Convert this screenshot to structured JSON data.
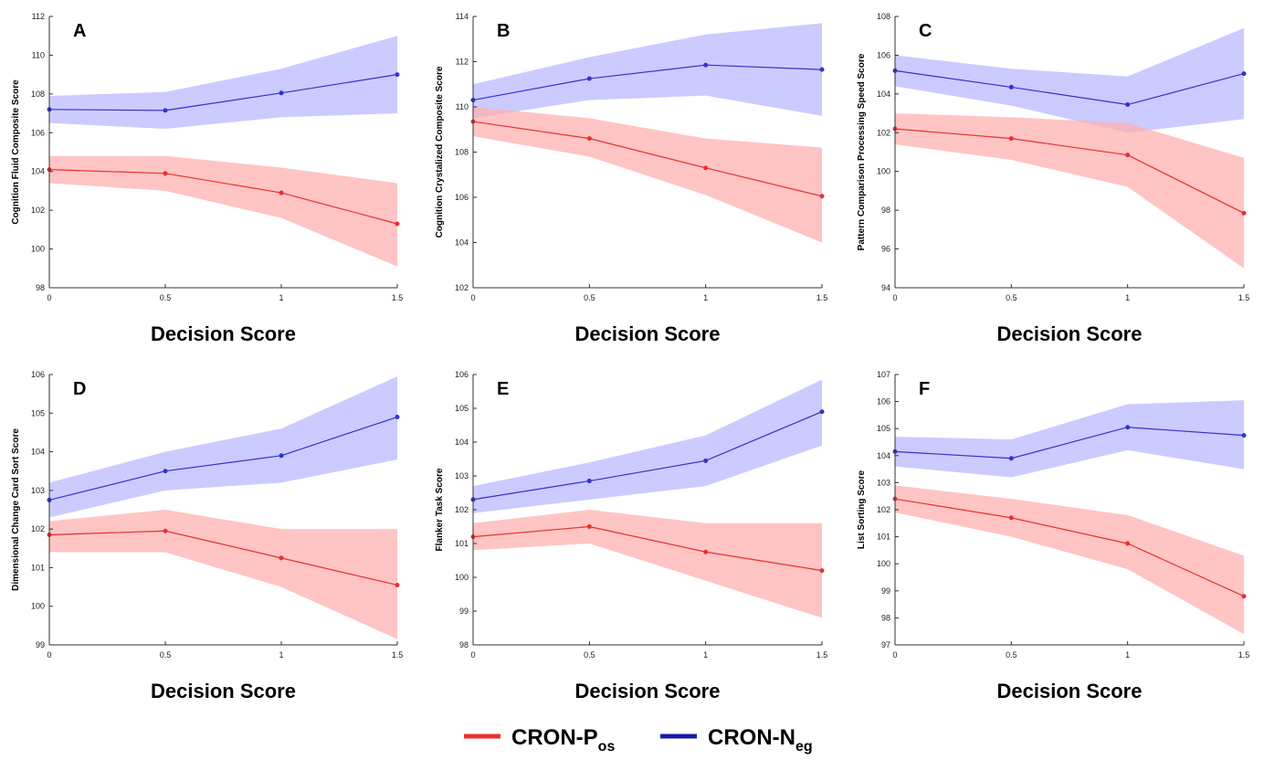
{
  "chart_data": [
    {
      "type": "line",
      "title": "A",
      "y_label": "Cognition Fluid Composite Score",
      "x_label": "Decision Score",
      "x": [
        0,
        0.5,
        1,
        1.5
      ],
      "xlim": [
        0,
        1.5
      ],
      "xticks": [
        0,
        0.5,
        1,
        1.5
      ],
      "ylim": [
        98,
        112
      ],
      "yticks": [
        98,
        100,
        102,
        104,
        106,
        108,
        110,
        112
      ],
      "series": [
        {
          "color": "#3333cc",
          "band_color": "#b9b9ff",
          "values": [
            107.2,
            107.15,
            108.05,
            109.0
          ],
          "lower": [
            106.5,
            106.2,
            106.8,
            107.0
          ],
          "upper": [
            107.9,
            108.1,
            109.3,
            111.0
          ]
        },
        {
          "color": "#e83030",
          "band_color": "#ffb0b0",
          "values": [
            104.1,
            103.9,
            102.9,
            101.3
          ],
          "lower": [
            103.4,
            103.0,
            101.6,
            99.1
          ],
          "upper": [
            104.8,
            104.8,
            104.2,
            103.4
          ]
        }
      ]
    },
    {
      "type": "line",
      "title": "B",
      "y_label": "Cognition Crystalized Composite Score",
      "x_label": "Decision Score",
      "x": [
        0,
        0.5,
        1,
        1.5
      ],
      "xlim": [
        0,
        1.5
      ],
      "xticks": [
        0,
        0.5,
        1,
        1.5
      ],
      "ylim": [
        102,
        114
      ],
      "yticks": [
        102,
        104,
        106,
        108,
        110,
        112,
        114
      ],
      "series": [
        {
          "color": "#3333cc",
          "band_color": "#b9b9ff",
          "values": [
            110.3,
            111.25,
            111.85,
            111.65
          ],
          "lower": [
            109.5,
            110.3,
            110.5,
            109.6
          ],
          "upper": [
            111.0,
            112.2,
            113.2,
            113.7
          ]
        },
        {
          "color": "#e83030",
          "band_color": "#ffb0b0",
          "values": [
            109.35,
            108.6,
            107.3,
            106.05
          ],
          "lower": [
            108.7,
            107.8,
            106.1,
            104.0
          ],
          "upper": [
            110.0,
            109.5,
            108.6,
            108.2
          ]
        }
      ]
    },
    {
      "type": "line",
      "title": "C",
      "y_label": "Pattern Comparison Processing Speed Score",
      "x_label": "Decision Score",
      "x": [
        0,
        0.5,
        1,
        1.5
      ],
      "xlim": [
        0,
        1.5
      ],
      "xticks": [
        0,
        0.5,
        1,
        1.5
      ],
      "ylim": [
        94,
        108
      ],
      "yticks": [
        94,
        96,
        98,
        100,
        102,
        104,
        106,
        108
      ],
      "series": [
        {
          "color": "#3333cc",
          "band_color": "#b9b9ff",
          "values": [
            105.2,
            104.35,
            103.45,
            105.05
          ],
          "lower": [
            104.4,
            103.4,
            102.0,
            102.7
          ],
          "upper": [
            106.0,
            105.3,
            104.9,
            107.4
          ]
        },
        {
          "color": "#e83030",
          "band_color": "#ffb0b0",
          "values": [
            102.2,
            101.7,
            100.85,
            97.85
          ],
          "lower": [
            101.4,
            100.6,
            99.2,
            95.0
          ],
          "upper": [
            103.0,
            102.8,
            102.5,
            100.7
          ]
        }
      ]
    },
    {
      "type": "line",
      "title": "D",
      "y_label": "Dimensional Change Card Sort Score",
      "x_label": "Decision Score",
      "x": [
        0,
        0.5,
        1,
        1.5
      ],
      "xlim": [
        0,
        1.5
      ],
      "xticks": [
        0,
        0.5,
        1,
        1.5
      ],
      "ylim": [
        99,
        106
      ],
      "yticks": [
        99,
        100,
        101,
        102,
        103,
        104,
        105,
        106
      ],
      "series": [
        {
          "color": "#3333cc",
          "band_color": "#b9b9ff",
          "values": [
            102.75,
            103.5,
            103.9,
            104.9
          ],
          "lower": [
            102.3,
            103.0,
            103.2,
            103.8
          ],
          "upper": [
            103.2,
            104.0,
            104.6,
            105.95
          ]
        },
        {
          "color": "#e83030",
          "band_color": "#ffb0b0",
          "values": [
            101.85,
            101.95,
            101.25,
            100.55
          ],
          "lower": [
            101.4,
            101.4,
            100.5,
            99.15
          ],
          "upper": [
            102.2,
            102.5,
            102.0,
            102.0
          ]
        }
      ]
    },
    {
      "type": "line",
      "title": "E",
      "y_label": "Flanker Task Score",
      "x_label": "Decision Score",
      "x": [
        0,
        0.5,
        1,
        1.5
      ],
      "xlim": [
        0,
        1.5
      ],
      "xticks": [
        0,
        0.5,
        1,
        1.5
      ],
      "ylim": [
        98,
        106
      ],
      "yticks": [
        98,
        99,
        100,
        101,
        102,
        103,
        104,
        105,
        106
      ],
      "series": [
        {
          "color": "#3333cc",
          "band_color": "#b9b9ff",
          "values": [
            102.3,
            102.85,
            103.45,
            104.9
          ],
          "lower": [
            101.9,
            102.3,
            102.7,
            103.9
          ],
          "upper": [
            102.7,
            103.4,
            104.2,
            105.85
          ]
        },
        {
          "color": "#e83030",
          "band_color": "#ffb0b0",
          "values": [
            101.2,
            101.5,
            100.75,
            100.2
          ],
          "lower": [
            100.8,
            101.0,
            99.9,
            98.8
          ],
          "upper": [
            101.6,
            102.0,
            101.6,
            101.6
          ]
        }
      ]
    },
    {
      "type": "line",
      "title": "F",
      "y_label": "List Sorting Score",
      "x_label": "Decision Score",
      "x": [
        0,
        0.5,
        1,
        1.5
      ],
      "xlim": [
        0,
        1.5
      ],
      "xticks": [
        0,
        0.5,
        1,
        1.5
      ],
      "ylim": [
        97,
        107
      ],
      "yticks": [
        97,
        98,
        99,
        100,
        101,
        102,
        103,
        104,
        105,
        106,
        107
      ],
      "series": [
        {
          "color": "#3333cc",
          "band_color": "#b9b9ff",
          "values": [
            104.15,
            103.9,
            105.05,
            104.75
          ],
          "lower": [
            103.6,
            103.2,
            104.2,
            103.5
          ],
          "upper": [
            104.7,
            104.6,
            105.9,
            106.05
          ]
        },
        {
          "color": "#e83030",
          "band_color": "#ffb0b0",
          "values": [
            102.4,
            101.7,
            100.75,
            98.8
          ],
          "lower": [
            101.9,
            101.0,
            99.8,
            97.4
          ],
          "upper": [
            102.9,
            102.4,
            101.8,
            100.3
          ]
        }
      ]
    }
  ],
  "legend": [
    {
      "name": "CRON-P",
      "sub": "os",
      "color": "#e83030"
    },
    {
      "name": "CRON-N",
      "sub": "eg",
      "color": "#1a1aaa"
    }
  ]
}
